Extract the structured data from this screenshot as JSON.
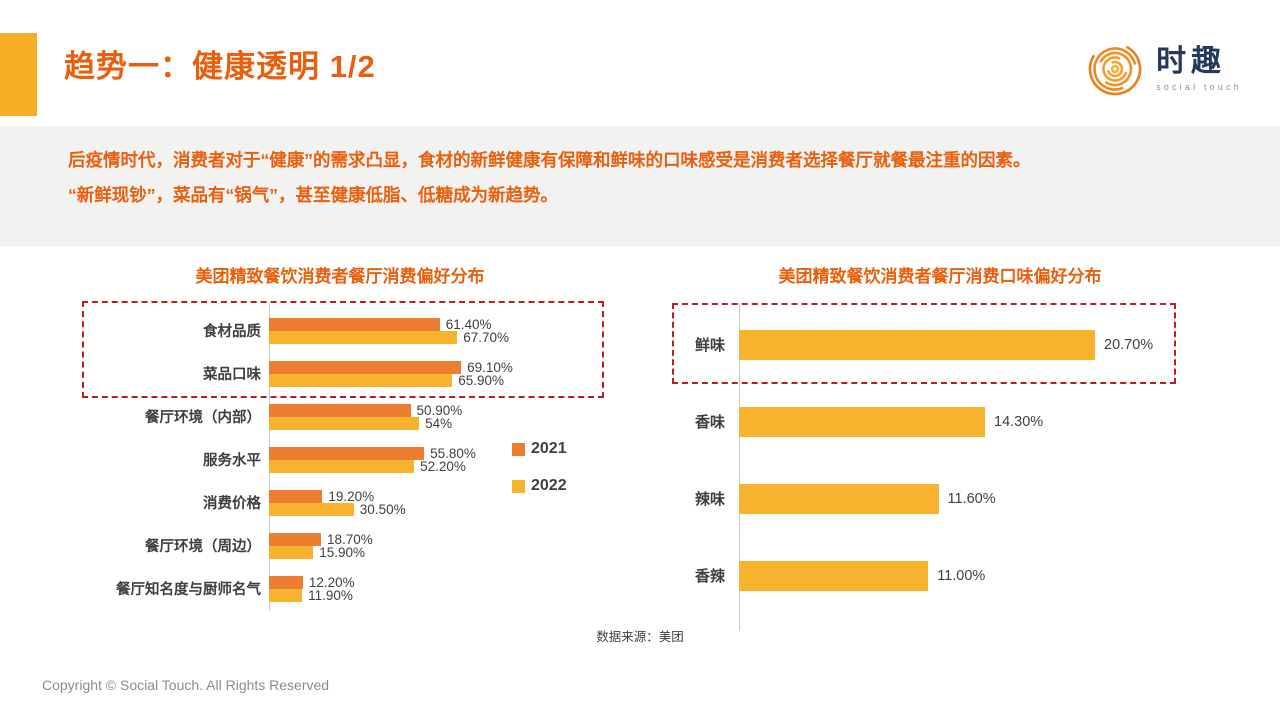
{
  "header": {
    "title": "趋势一：健康透明 1/2",
    "logo_name": "时趣",
    "logo_subtitle": "social touch"
  },
  "intro": {
    "line1": "后疫情时代，消费者对于“健康”的需求凸显，食材的新鲜健康有保障和鲜味的口味感受是消费者选择餐厅就餐最注重的因素。",
    "line2": "“新鲜现钞”，菜品有“锅气”，甚至健康低脂、低糖成为新趋势。"
  },
  "colors": {
    "accent_yellow": "#F7AE25",
    "title_orange": "#E95F0D",
    "series_2021_orange": "#ED7D31",
    "series_2022_yellow": "#F7B32E",
    "highlight_red": "#BB1D22",
    "axis_gray": "#C9C9C9",
    "band_gray": "#F2F2F1"
  },
  "chart_data": [
    {
      "type": "bar",
      "orientation": "horizontal",
      "title": "美团精致餐饮消费者餐厅消费偏好分布",
      "categories": [
        "食材品质",
        "菜品口味",
        "餐厅环境（内部）",
        "服务水平",
        "消费价格",
        "餐厅环境（周边）",
        "餐厅知名度与厨师名气"
      ],
      "series": [
        {
          "name": "2021",
          "color": "#ED7D31",
          "values": [
            61.4,
            69.1,
            50.9,
            55.8,
            19.2,
            18.7,
            12.2
          ],
          "labels": [
            "61.40%",
            "69.10%",
            "50.90%",
            "55.80%",
            "19.20%",
            "18.70%",
            "12.20%"
          ]
        },
        {
          "name": "2022",
          "color": "#F7B32E",
          "values": [
            67.7,
            65.9,
            54,
            52.2,
            30.5,
            15.9,
            11.9
          ],
          "labels": [
            "67.70%",
            "65.90%",
            "54%",
            "52.20%",
            "30.50%",
            "15.90%",
            "11.90%"
          ]
        }
      ],
      "xlim": [
        0,
        80
      ],
      "grid": false,
      "legend_position": "right-middle",
      "highlighted_categories": [
        "食材品质",
        "菜品口味"
      ]
    },
    {
      "type": "bar",
      "orientation": "horizontal",
      "title": "美团精致餐饮消费者餐厅消费口味偏好分布",
      "categories": [
        "鲜味",
        "香味",
        "辣味",
        "香辣"
      ],
      "values": [
        20.7,
        14.3,
        11.6,
        11.0
      ],
      "labels": [
        "20.70%",
        "14.30%",
        "11.60%",
        "11.00%"
      ],
      "bar_color": "#F7B32E",
      "xlim": [
        0,
        22
      ],
      "grid": false,
      "legend_position": "none",
      "highlighted_categories": [
        "鲜味"
      ]
    }
  ],
  "source_note": "数据来源：美团",
  "footer": "Copyright © Social Touch. All Rights Reserved"
}
